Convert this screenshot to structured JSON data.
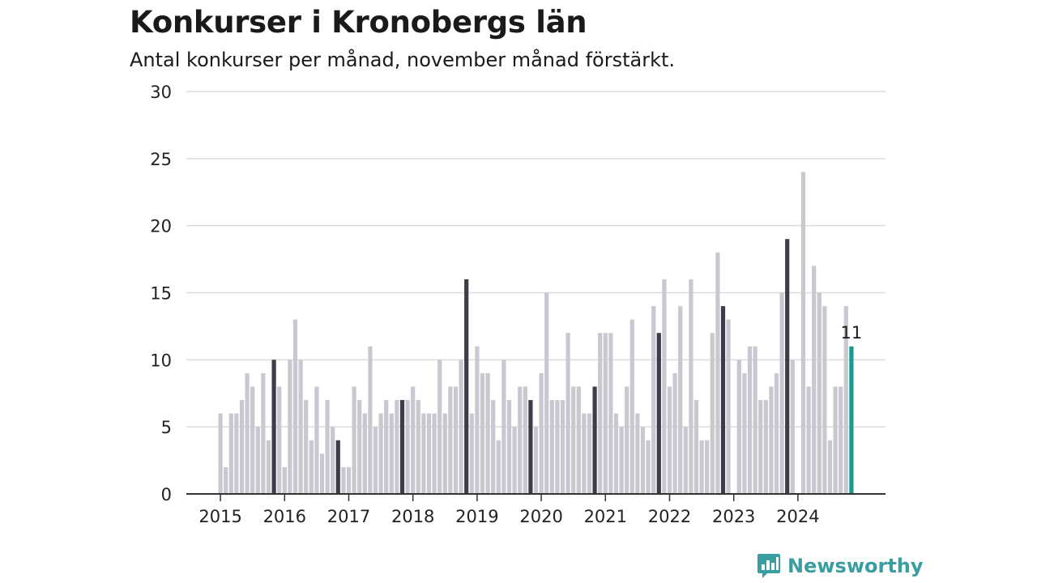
{
  "chart_data": {
    "type": "bar",
    "title": "Konkurser i Kronobergs län",
    "subtitle": "Antal konkurser per månad, november månad förstärkt.",
    "xlabel": "",
    "ylabel": "",
    "ylim": [
      0,
      30
    ],
    "yticks": [
      "0",
      "5",
      "10",
      "15",
      "20",
      "25",
      "30"
    ],
    "xticks": [
      "2015",
      "2016",
      "2017",
      "2018",
      "2019",
      "2020",
      "2021",
      "2022",
      "2023",
      "2024"
    ],
    "grid": true,
    "start": "2015-01",
    "values": [
      6,
      2,
      6,
      6,
      7,
      9,
      8,
      5,
      9,
      4,
      10,
      8,
      2,
      10,
      13,
      10,
      7,
      4,
      8,
      3,
      7,
      5,
      4,
      2,
      2,
      8,
      7,
      6,
      11,
      5,
      6,
      7,
      6,
      7,
      7,
      7,
      8,
      7,
      6,
      6,
      6,
      10,
      6,
      8,
      8,
      10,
      16,
      6,
      11,
      9,
      9,
      7,
      4,
      10,
      7,
      5,
      8,
      8,
      7,
      5,
      9,
      15,
      7,
      7,
      7,
      12,
      8,
      8,
      6,
      6,
      8,
      12,
      12,
      12,
      6,
      5,
      8,
      13,
      6,
      5,
      4,
      14,
      12,
      16,
      8,
      9,
      14,
      5,
      16,
      7,
      4,
      4,
      12,
      18,
      14,
      13,
      0,
      10,
      9,
      11,
      11,
      7,
      7,
      8,
      9,
      15,
      19,
      10,
      0,
      24,
      8,
      17,
      15,
      14,
      4,
      8,
      8,
      14,
      11
    ],
    "highlight_month": "november",
    "latest_label": "11",
    "colors": {
      "bar": "#c8c8d0",
      "november": "#3d3d4a",
      "latest": "#1a9a8f",
      "grid": "#dcdcdc",
      "axis": "#333333"
    }
  },
  "brand": {
    "name": "Newsworthy",
    "icon": "newsworthy-logo-icon",
    "color": "#3a9ea0"
  }
}
